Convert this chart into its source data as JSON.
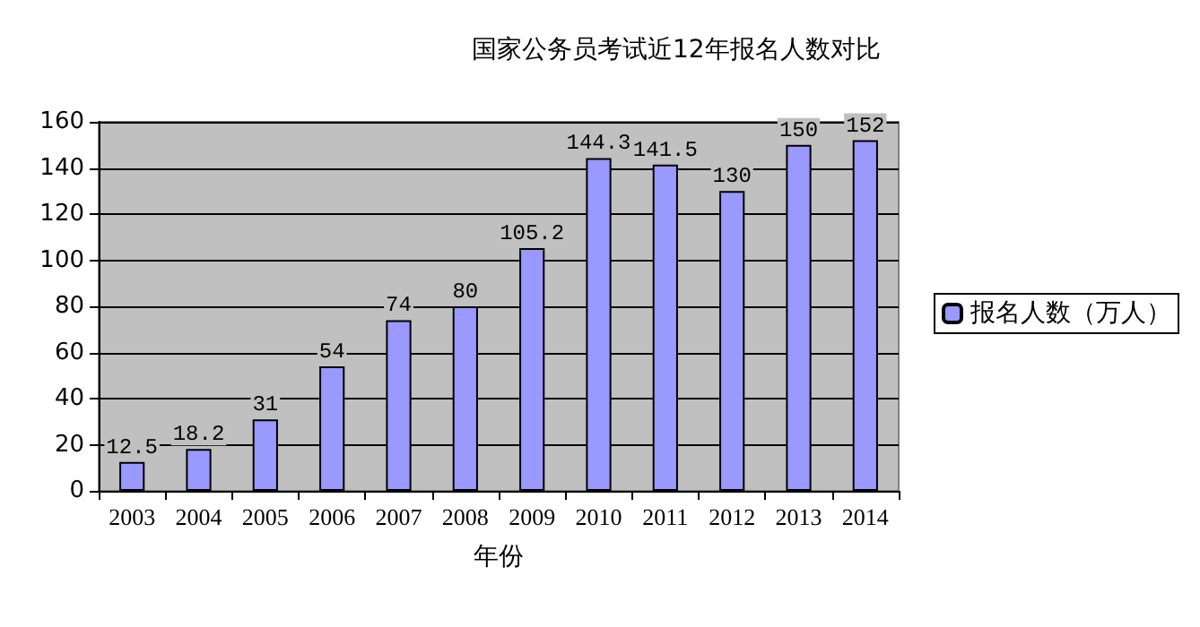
{
  "chart_data": {
    "type": "bar",
    "title": "国家公务员考试近12年报名人数对比",
    "xlabel": "年份",
    "categories": [
      "2003",
      "2004",
      "2005",
      "2006",
      "2007",
      "2008",
      "2009",
      "2010",
      "2011",
      "2012",
      "2013",
      "2014"
    ],
    "series": [
      {
        "name": "报名人数（万人）",
        "color": "#9999ff",
        "values": [
          12.5,
          18.2,
          31,
          54,
          74,
          80,
          105.2,
          144.3,
          141.5,
          130,
          150,
          152
        ]
      }
    ],
    "ylim": [
      0,
      160
    ],
    "yticks": [
      0,
      20,
      40,
      60,
      80,
      100,
      120,
      140,
      160
    ],
    "grid": "y",
    "legend": "right",
    "data_labels": true
  }
}
